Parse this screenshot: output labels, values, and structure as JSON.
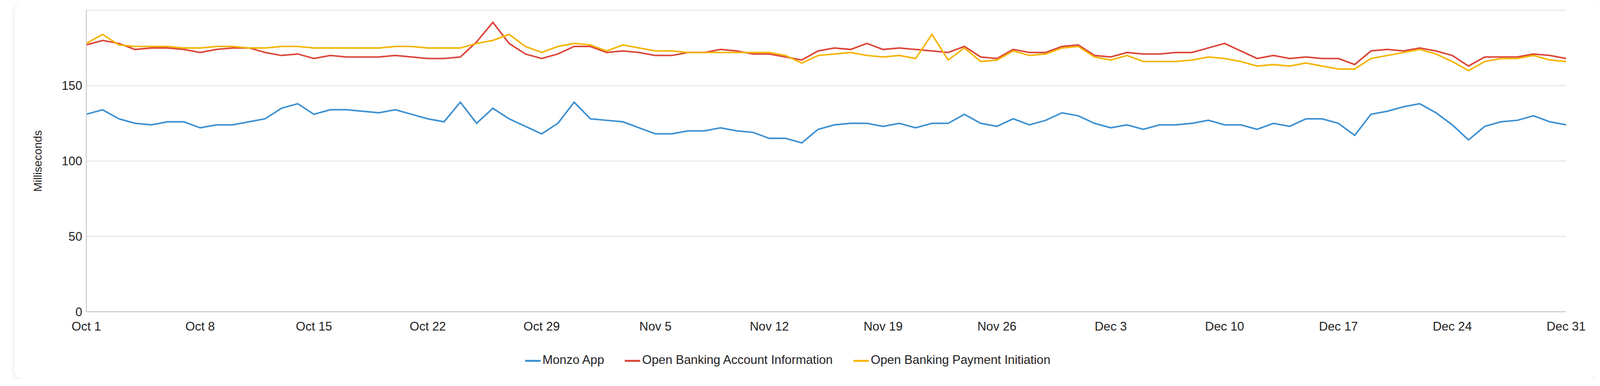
{
  "chart_data": {
    "type": "line",
    "y_label": "Milliseconds",
    "categories": [
      "Oct 1",
      null,
      null,
      null,
      null,
      null,
      null,
      "Oct 8",
      null,
      null,
      null,
      null,
      null,
      null,
      "Oct 15",
      null,
      null,
      null,
      null,
      null,
      null,
      "Oct 22",
      null,
      null,
      null,
      null,
      null,
      null,
      "Oct 29",
      null,
      null,
      null,
      null,
      null,
      null,
      "Nov 5",
      null,
      null,
      null,
      null,
      null,
      null,
      "Nov 12",
      null,
      null,
      null,
      null,
      null,
      null,
      "Nov 19",
      null,
      null,
      null,
      null,
      null,
      null,
      "Nov 26",
      null,
      null,
      null,
      null,
      null,
      null,
      "Dec 3",
      null,
      null,
      null,
      null,
      null,
      null,
      "Dec 10",
      null,
      null,
      null,
      null,
      null,
      null,
      "Dec 17",
      null,
      null,
      null,
      null,
      null,
      null,
      "Dec 24",
      null,
      null,
      null,
      null,
      null,
      null,
      "Dec 31"
    ],
    "series": [
      {
        "name": "Open Banking Account Information",
        "color": "#db4437",
        "values": [
          177,
          180,
          178,
          174,
          175,
          175,
          174,
          172,
          174,
          175,
          175,
          172,
          170,
          171,
          168,
          170,
          169,
          169,
          169,
          170,
          169,
          168,
          168,
          169,
          179,
          192,
          178,
          171,
          168,
          171,
          176,
          176,
          172,
          173,
          172,
          170,
          170,
          172,
          172,
          174,
          173,
          171,
          171,
          169,
          167,
          173,
          175,
          174,
          178,
          174,
          175,
          174,
          173,
          172,
          176,
          169,
          168,
          174,
          172,
          172,
          176,
          177,
          170,
          169,
          172,
          171,
          171,
          172,
          172,
          175,
          178,
          173,
          168,
          170,
          168,
          169,
          168,
          168,
          164,
          173,
          174,
          173,
          175,
          173,
          170,
          163,
          169,
          169,
          169,
          171,
          170,
          168
        ]
      },
      {
        "name": "Open Banking Payment Initiation",
        "color": "#f4b400",
        "values": [
          178,
          184,
          177,
          176,
          176,
          176,
          175,
          175,
          176,
          176,
          175,
          175,
          176,
          176,
          175,
          175,
          175,
          175,
          175,
          176,
          176,
          175,
          175,
          175,
          178,
          180,
          184,
          176,
          172,
          176,
          178,
          177,
          173,
          177,
          175,
          173,
          173,
          172,
          172,
          172,
          172,
          172,
          172,
          170,
          165,
          170,
          171,
          172,
          170,
          169,
          170,
          168,
          184,
          167,
          175,
          166,
          167,
          173,
          170,
          171,
          175,
          176,
          169,
          167,
          170,
          166,
          166,
          166,
          167,
          169,
          168,
          166,
          163,
          164,
          163,
          165,
          163,
          161,
          161,
          168,
          170,
          172,
          174,
          171,
          166,
          160,
          166,
          168,
          168,
          170,
          167,
          166
        ]
      },
      {
        "name": "Monzo App",
        "color": "#3a8fd1",
        "values": [
          131,
          134,
          128,
          125,
          124,
          126,
          126,
          122,
          124,
          124,
          126,
          128,
          135,
          138,
          131,
          134,
          134,
          133,
          132,
          134,
          131,
          128,
          126,
          139,
          125,
          135,
          128,
          123,
          118,
          125,
          139,
          128,
          127,
          126,
          122,
          118,
          118,
          120,
          120,
          122,
          120,
          119,
          115,
          115,
          112,
          121,
          124,
          125,
          125,
          123,
          125,
          122,
          125,
          125,
          131,
          125,
          123,
          128,
          124,
          127,
          132,
          130,
          125,
          122,
          124,
          121,
          124,
          124,
          125,
          127,
          124,
          124,
          121,
          125,
          123,
          128,
          128,
          125,
          117,
          131,
          133,
          136,
          138,
          132,
          124,
          114,
          123,
          126,
          127,
          130,
          126,
          124
        ]
      }
    ],
    "ylim": [
      0,
      200
    ],
    "yticks": [
      0,
      50,
      100,
      150
    ],
    "grid": true,
    "legend": "bottom"
  }
}
